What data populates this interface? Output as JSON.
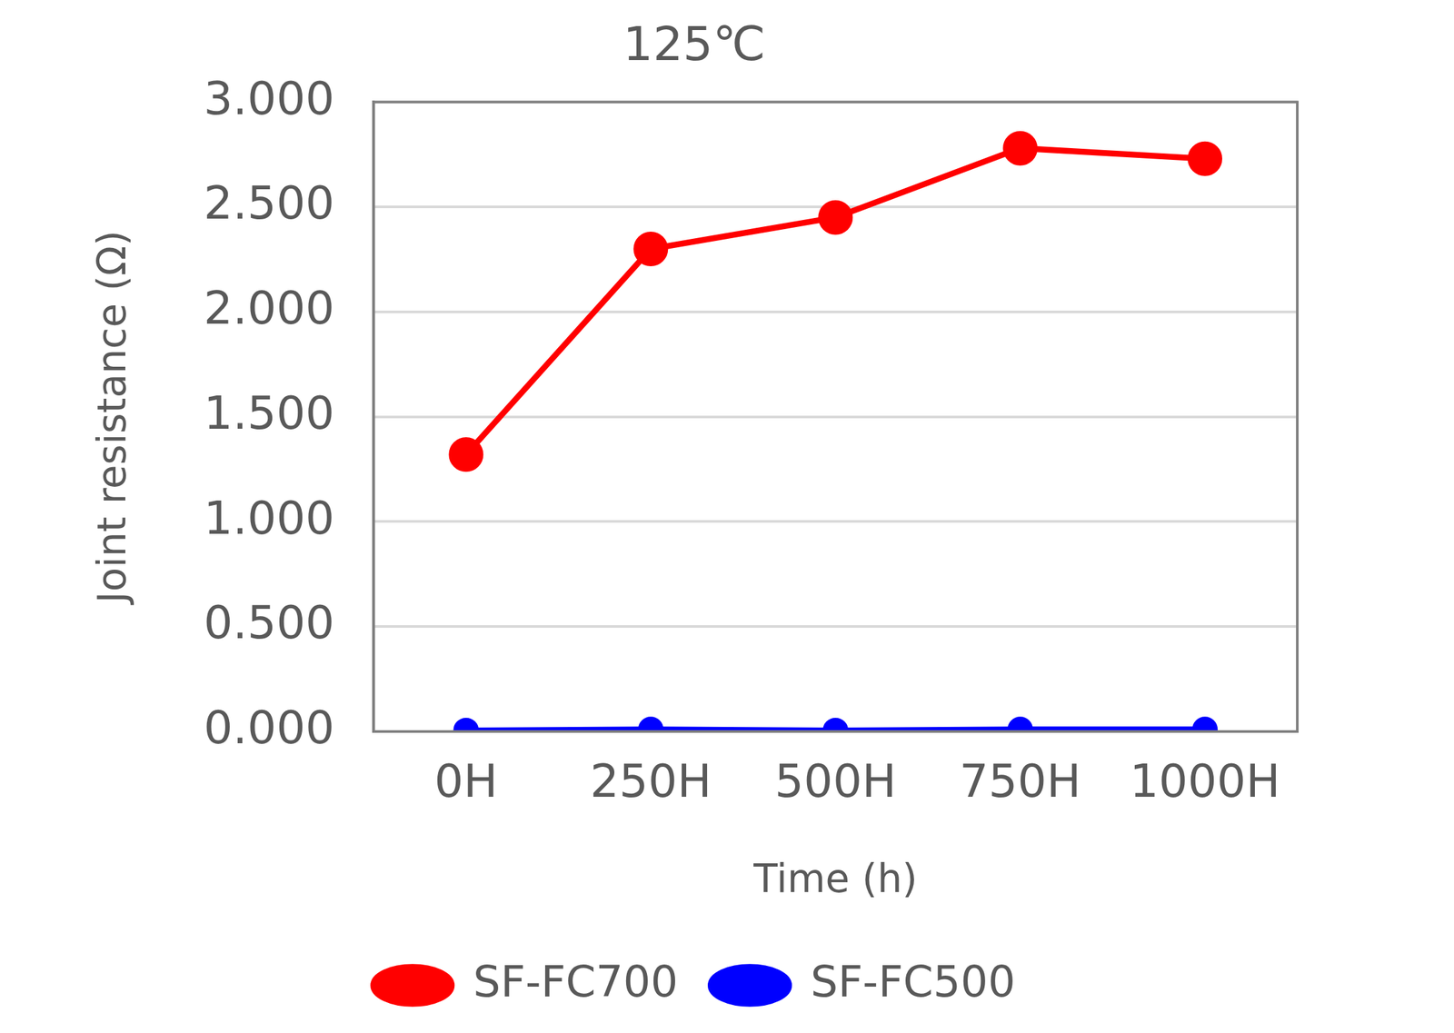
{
  "chart_data": {
    "type": "line",
    "title": "125℃",
    "x_label": "Time (h)",
    "y_label": "Joint resistance (Ω)",
    "categories": [
      "0H",
      "250H",
      "500H",
      "750H",
      "1000H"
    ],
    "series": [
      {
        "name": "SF-FC700",
        "color": "#ff0000",
        "marker": "circle",
        "values": [
          1.32,
          2.3,
          2.45,
          2.78,
          2.73
        ]
      },
      {
        "name": "SF-FC500",
        "color": "#0000ff",
        "marker": "circle",
        "values": [
          0.005,
          0.01,
          0.005,
          0.01,
          0.01
        ]
      }
    ],
    "ylim": [
      0,
      3
    ],
    "yticks": [
      {
        "value": 0,
        "label": "0.000"
      },
      {
        "value": 0.5,
        "label": "0.500"
      },
      {
        "value": 1,
        "label": "1.000"
      },
      {
        "value": 1.5,
        "label": "1.500"
      },
      {
        "value": 2,
        "label": "2.000"
      },
      {
        "value": 2.5,
        "label": "2.500"
      },
      {
        "value": 3,
        "label": "3.000"
      }
    ],
    "grid": true,
    "legend": "bottom"
  }
}
